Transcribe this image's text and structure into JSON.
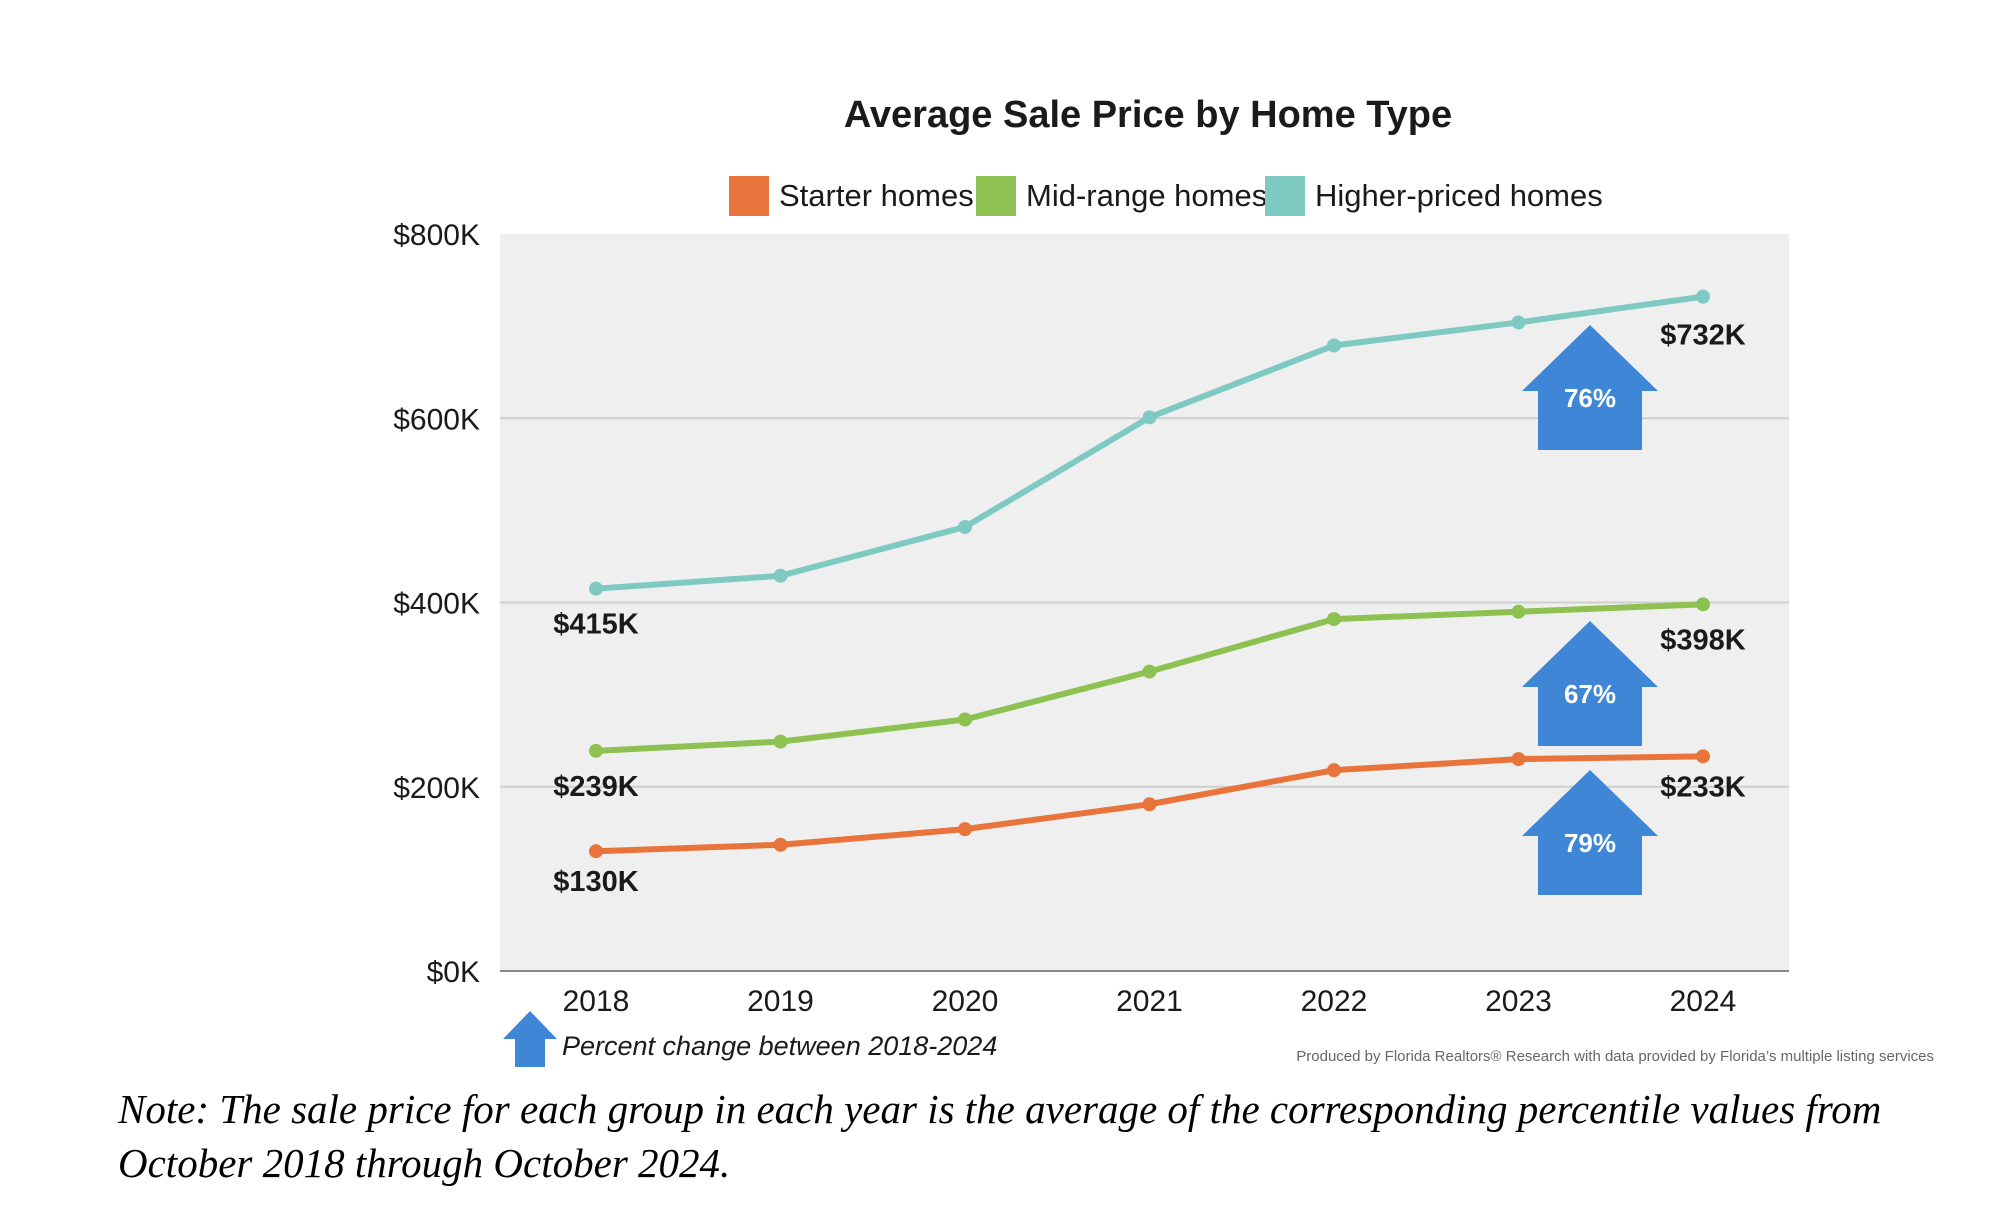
{
  "chart_data": {
    "type": "line",
    "title": "Average Sale Price by Home Type",
    "x": [
      "2018",
      "2019",
      "2020",
      "2021",
      "2022",
      "2023",
      "2024"
    ],
    "ylim": [
      0,
      800
    ],
    "y_ticks": [
      0,
      200,
      400,
      600,
      800
    ],
    "y_tick_labels": [
      "$0K",
      "$200K",
      "$400K",
      "$600K",
      "$800K"
    ],
    "grid": true,
    "legend_position": "top",
    "series": [
      {
        "name": "Starter homes",
        "color": "#E8743B",
        "values": [
          130,
          137,
          154,
          181,
          218,
          230,
          233
        ],
        "start_label": "$130K",
        "end_label": "$233K",
        "percent_change": "79%"
      },
      {
        "name": "Mid-range homes",
        "color": "#8DC152",
        "values": [
          239,
          249,
          273,
          325,
          382,
          390,
          398
        ],
        "start_label": "$239K",
        "end_label": "$398K",
        "percent_change": "67%"
      },
      {
        "name": "Higher-priced homes",
        "color": "#7ECAC3",
        "values": [
          415,
          429,
          482,
          601,
          679,
          704,
          732
        ],
        "start_label": "$415K",
        "end_label": "$732K",
        "percent_change": "76%"
      }
    ],
    "arrow_color": "#3F86D6",
    "arrow_key_label": "Percent change between 2018-2024",
    "source": "Produced by Florida Realtors® Research with data provided by Florida’s multiple listing services"
  },
  "note": "Note: The sale price for each group in each year is the average of the corresponding percentile values from October 2018 through October 2024."
}
